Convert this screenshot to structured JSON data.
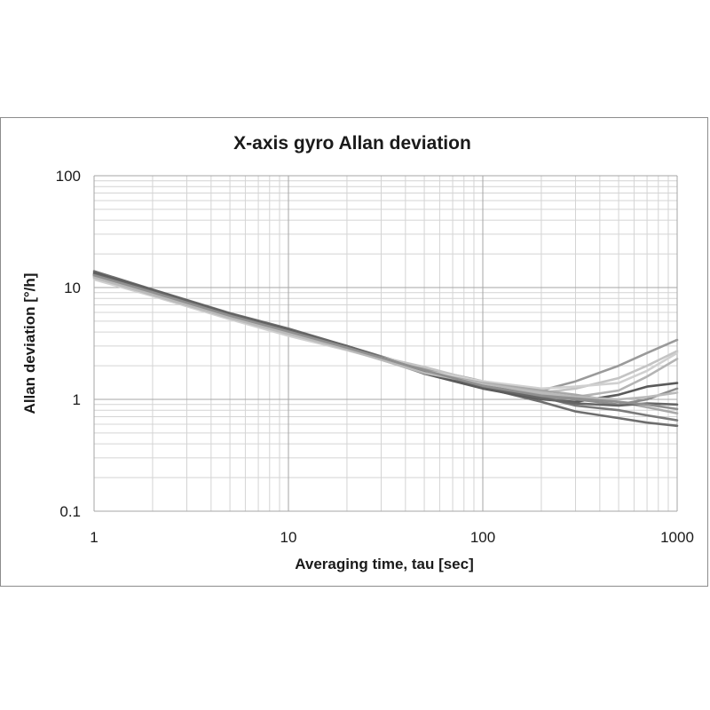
{
  "chart_data": {
    "type": "line",
    "title": "X-axis gyro Allan deviation",
    "xlabel": "Averaging time, tau [sec]",
    "ylabel": "Allan deviation [°/h]",
    "x_scale": "log",
    "y_scale": "log",
    "xlim": [
      1,
      1000
    ],
    "ylim": [
      0.1,
      100
    ],
    "x_ticks": [
      1,
      10,
      100,
      1000
    ],
    "x_tick_labels": [
      "1",
      "10",
      "100",
      "1000"
    ],
    "y_ticks": [
      0.1,
      1,
      10,
      100
    ],
    "y_tick_labels": [
      "0.1",
      "1",
      "10",
      "100"
    ],
    "grid": true,
    "legend": "none",
    "x": [
      1,
      2,
      5,
      10,
      20,
      50,
      100,
      200,
      300,
      500,
      700,
      1000
    ],
    "series": [
      {
        "color": "#6e6e6e",
        "values": [
          14.0,
          9.6,
          5.9,
          4.3,
          3.0,
          1.85,
          1.28,
          0.95,
          0.78,
          0.68,
          0.62,
          0.58
        ]
      },
      {
        "color": "#9a9a9a",
        "values": [
          13.0,
          9.2,
          5.6,
          4.0,
          2.9,
          1.9,
          1.45,
          1.2,
          1.45,
          2.0,
          2.6,
          3.4
        ]
      },
      {
        "color": "#c4c4c4",
        "values": [
          12.2,
          8.7,
          5.3,
          3.8,
          2.8,
          1.95,
          1.42,
          1.15,
          1.25,
          1.55,
          2.0,
          2.7
        ]
      },
      {
        "color": "#b4b4b4",
        "values": [
          12.5,
          8.9,
          5.4,
          3.9,
          2.85,
          1.7,
          1.35,
          1.1,
          1.05,
          1.2,
          1.6,
          2.3
        ]
      },
      {
        "color": "#5a5a5a",
        "values": [
          13.5,
          9.5,
          5.8,
          4.2,
          3.0,
          1.7,
          1.25,
          1.0,
          0.95,
          1.1,
          1.3,
          1.4
        ]
      },
      {
        "color": "#8c8c8c",
        "values": [
          13.0,
          9.3,
          5.7,
          4.1,
          2.95,
          1.8,
          1.3,
          1.05,
          1.0,
          0.9,
          1.0,
          1.25
        ]
      },
      {
        "color": "#7a7a7a",
        "values": [
          12.8,
          9.0,
          5.5,
          4.0,
          2.9,
          1.75,
          1.35,
          1.05,
          0.88,
          0.8,
          0.72,
          0.65
        ]
      },
      {
        "color": "#d0d0d0",
        "values": [
          11.8,
          8.4,
          5.2,
          3.7,
          2.75,
          1.8,
          1.45,
          1.25,
          1.3,
          1.4,
          1.8,
          2.6
        ]
      },
      {
        "color": "#a8a8a8",
        "values": [
          12.6,
          8.8,
          5.45,
          3.95,
          2.85,
          1.75,
          1.4,
          1.2,
          1.1,
          0.95,
          0.85,
          0.75
        ]
      },
      {
        "color": "#666666",
        "values": [
          13.2,
          9.4,
          5.75,
          4.15,
          3.0,
          1.78,
          1.3,
          1.02,
          0.92,
          0.88,
          0.92,
          0.9
        ]
      },
      {
        "color": "#bababa",
        "values": [
          12.3,
          8.6,
          5.35,
          3.85,
          2.8,
          1.72,
          1.38,
          1.15,
          1.05,
          1.0,
          1.05,
          1.15
        ]
      },
      {
        "color": "#909090",
        "values": [
          12.9,
          9.1,
          5.6,
          4.05,
          2.9,
          1.82,
          1.32,
          1.08,
          1.02,
          0.95,
          0.9,
          0.82
        ]
      }
    ]
  }
}
